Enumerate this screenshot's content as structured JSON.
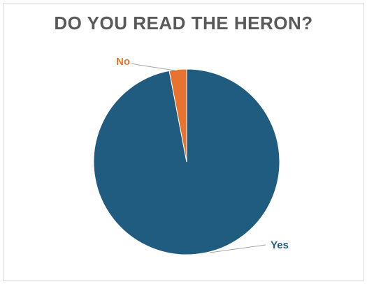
{
  "chart_data": {
    "type": "pie",
    "title": "DO YOU READ THE HERON?",
    "categories": [
      "Yes",
      "No"
    ],
    "values": [
      97,
      3
    ],
    "colors": [
      "#1f5c7f",
      "#e8732e"
    ],
    "label_colors": [
      "#1f5c7f",
      "#e8732e"
    ],
    "start_angle": "12 o'clock",
    "direction": "clockwise",
    "legend": "none",
    "data_labels": "category name with leader lines"
  }
}
